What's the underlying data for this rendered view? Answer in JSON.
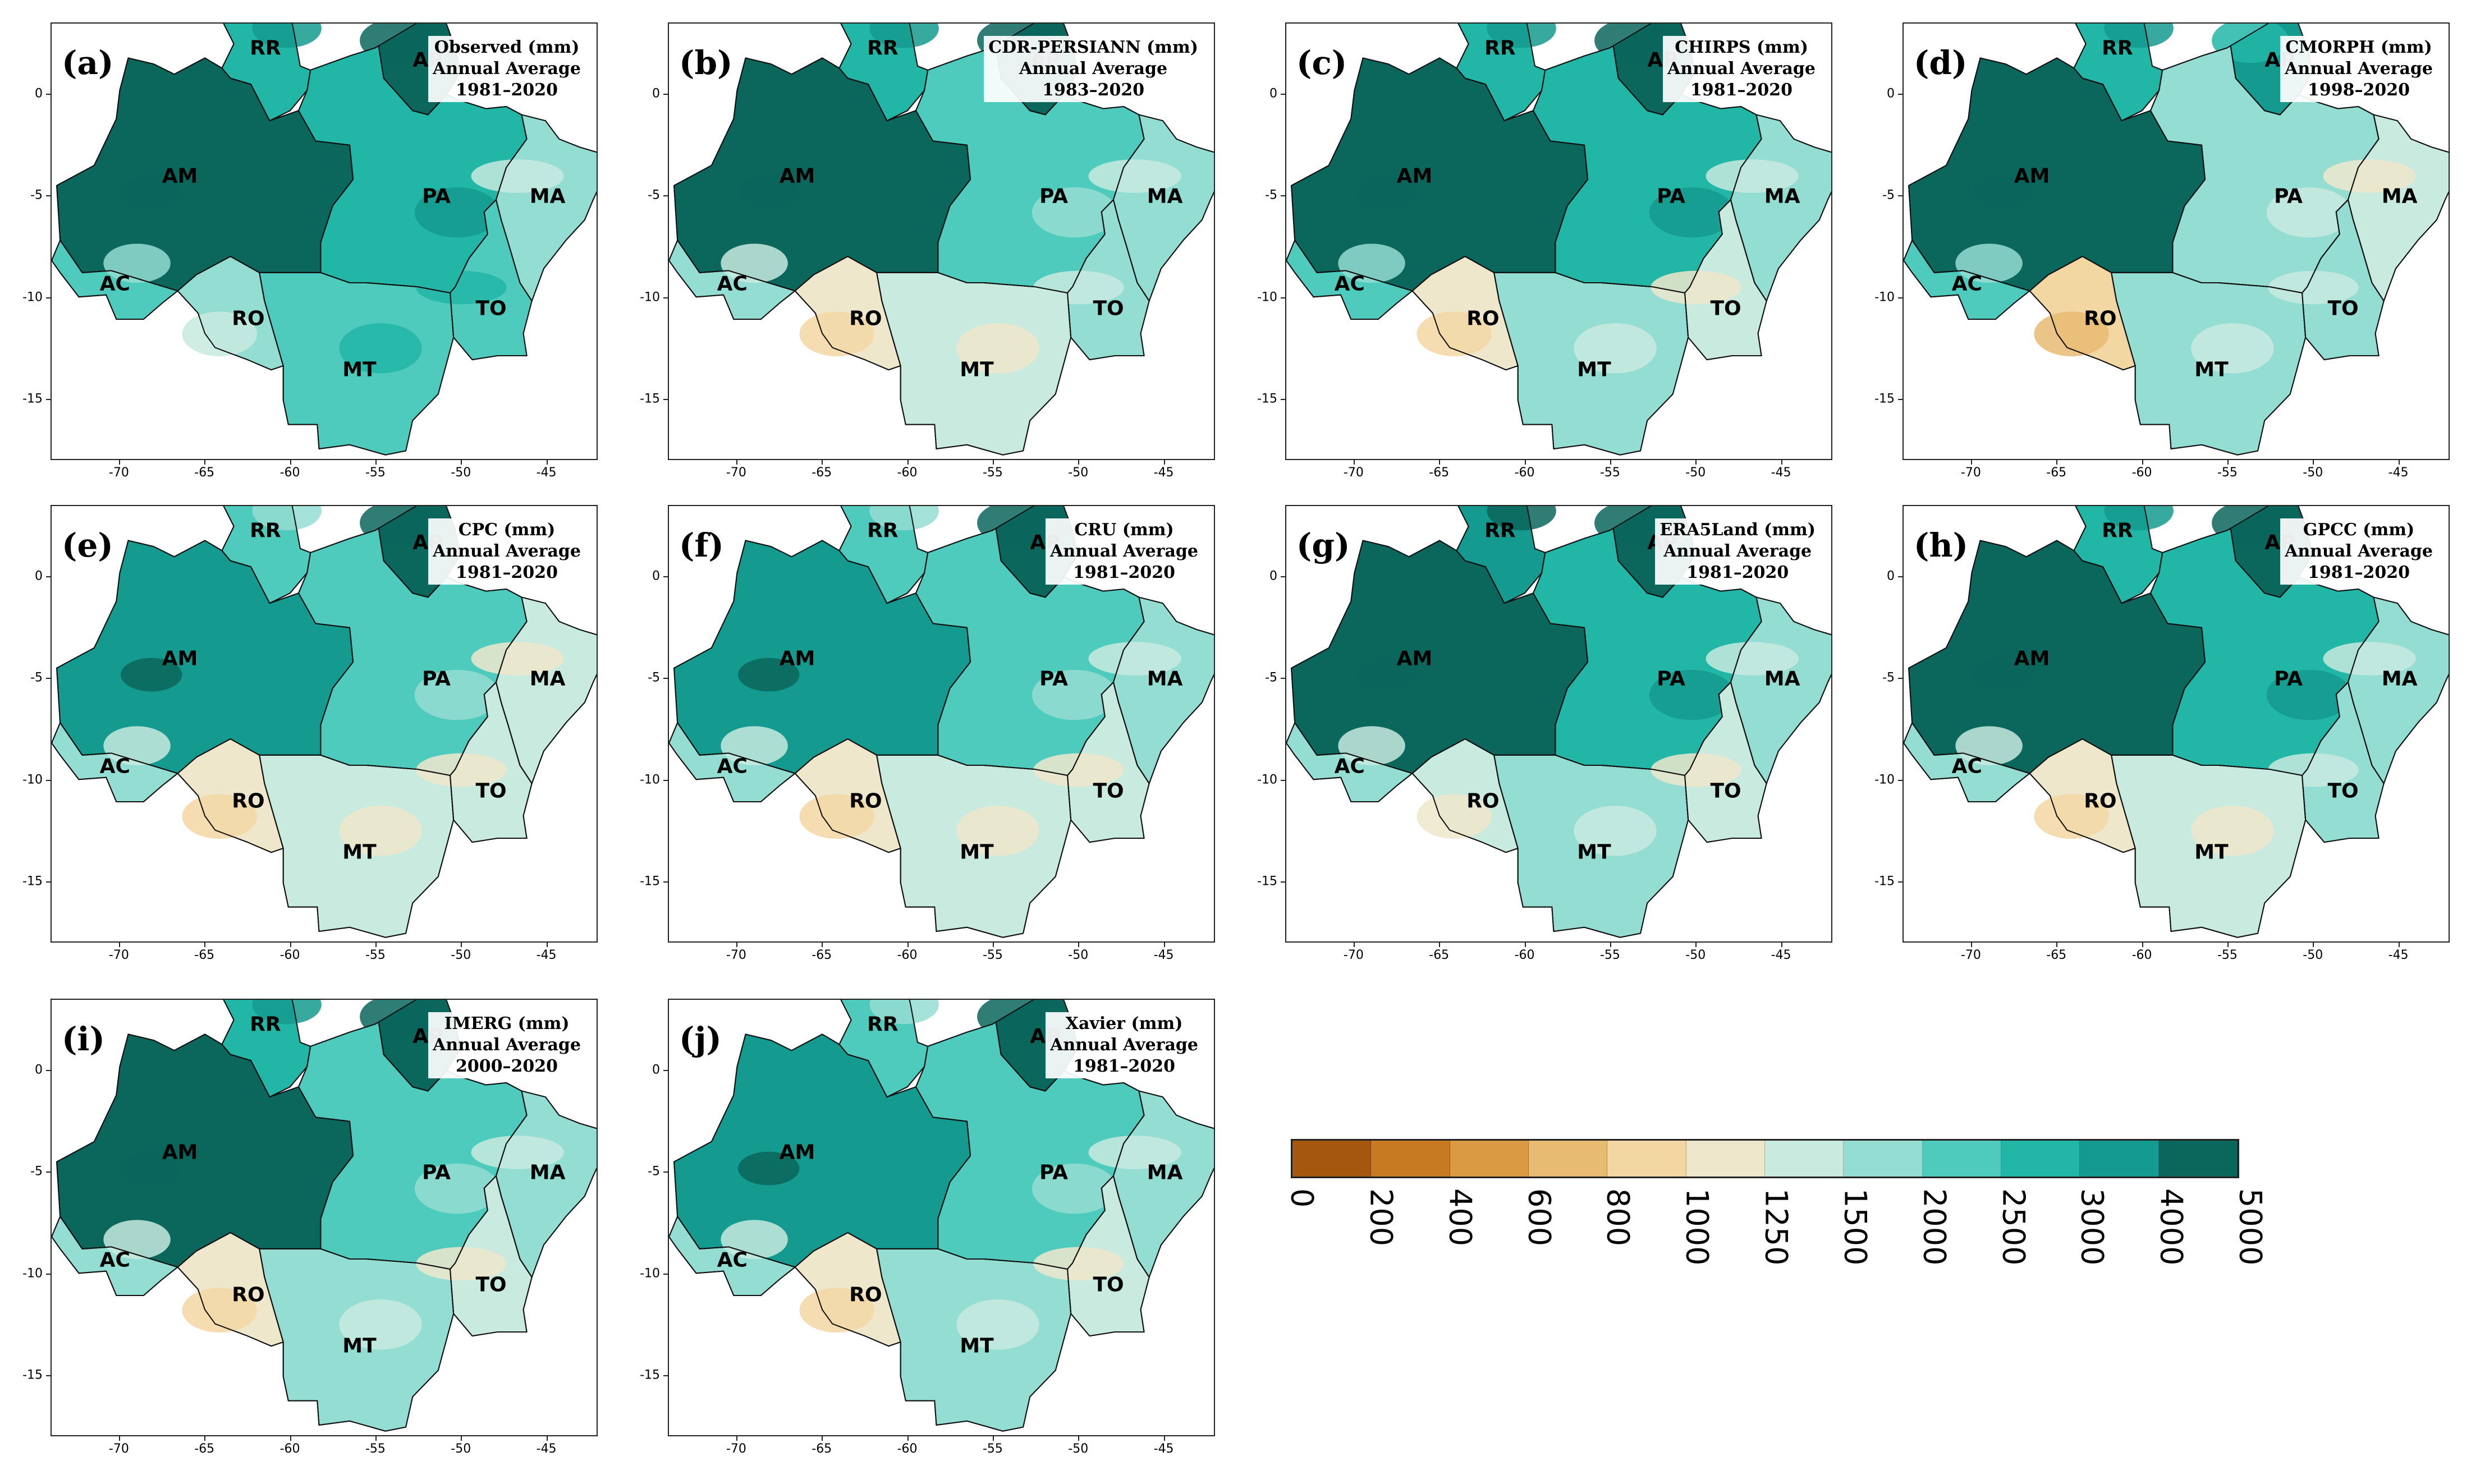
{
  "figure": {
    "panels": [
      {
        "letter": "(a)",
        "title": [
          "Observed (mm)",
          "Annual Average",
          "1981–2020"
        ],
        "fills": [
          3,
          2,
          4,
          2,
          1,
          1,
          0.5,
          2,
          2
        ]
      },
      {
        "letter": "(b)",
        "title": [
          "CDR-PERSIANN (mm)",
          "Annual Average",
          "1983–2020"
        ],
        "fills": [
          3,
          2,
          2,
          1,
          1,
          0,
          -1,
          0,
          1
        ]
      },
      {
        "letter": "(c)",
        "title": [
          "CHIRPS (mm)",
          "Annual Average",
          "1981–2020"
        ],
        "fills": [
          3,
          2,
          3,
          2,
          1,
          1,
          -1,
          1,
          0
        ]
      },
      {
        "letter": "(d)",
        "title": [
          "CMORPH (mm)",
          "Annual Average",
          "1998–2020"
        ],
        "fills": [
          3,
          2,
          1,
          0,
          0,
          1,
          -2,
          1,
          1
        ]
      },
      {
        "letter": "(e)",
        "title": [
          "CPC (mm)",
          "Annual Average",
          "1981–2020"
        ],
        "fills": [
          2,
          1,
          2,
          1,
          0,
          0,
          -1,
          0,
          0
        ]
      },
      {
        "letter": "(f)",
        "title": [
          "CRU (mm)",
          "Annual Average",
          "1981–2020"
        ],
        "fills": [
          2,
          1,
          2,
          1,
          1,
          0,
          -1,
          0,
          0
        ]
      },
      {
        "letter": "(g)",
        "title": [
          "ERA5Land (mm)",
          "Annual Average",
          "1981–2020"
        ],
        "fills": [
          3,
          3,
          2,
          2,
          1,
          0,
          0,
          1,
          0
        ]
      },
      {
        "letter": "(h)",
        "title": [
          "GPCC (mm)",
          "Annual Average",
          "1981–2020"
        ],
        "fills": [
          3,
          2,
          3,
          2,
          1,
          0,
          -1,
          0,
          1
        ]
      },
      {
        "letter": "(i)",
        "title": [
          "IMERG (mm)",
          "Annual Average",
          "2000–2020"
        ],
        "fills": [
          3,
          2,
          2,
          1,
          1,
          0,
          -1,
          1,
          0
        ]
      },
      {
        "letter": "(j)",
        "title": [
          "Xavier (mm)",
          "Annual Average",
          "1981–2020"
        ],
        "fills": [
          2,
          1,
          3,
          1,
          1,
          0,
          -1,
          1,
          0
        ]
      }
    ],
    "state_labels": [
      "AM",
      "RR",
      "AP",
      "PA",
      "MA",
      "AC",
      "RO",
      "MT",
      "TO"
    ],
    "lon_ticks": [
      "-70",
      "-65",
      "-60",
      "-55",
      "-50",
      "-45"
    ],
    "lat_ticks": [
      "0",
      "-5",
      "-10",
      "-15"
    ],
    "colorbar": {
      "labels": [
        "0",
        "200",
        "400",
        "600",
        "800",
        "1000",
        "1250",
        "1500",
        "2000",
        "2500",
        "3000",
        "4000",
        "5000"
      ],
      "colors": [
        "#a6570f",
        "#c77a22",
        "#da9a44",
        "#e8bb72",
        "#f3d7a3",
        "#efe7cc",
        "#c8eadf",
        "#94ddd3",
        "#4fcbbd",
        "#22b6a7",
        "#149a8e",
        "#0b665c"
      ]
    }
  }
}
